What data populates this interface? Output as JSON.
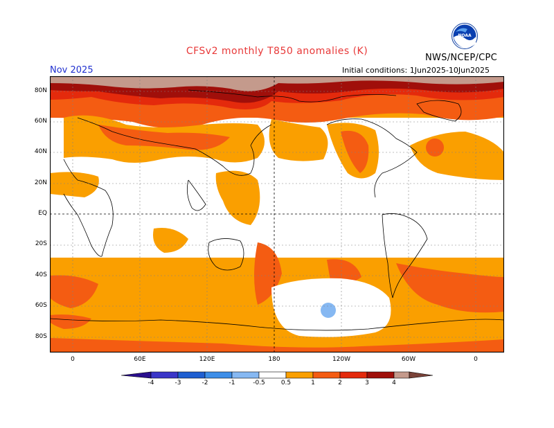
{
  "title": "CFSv2 monthly T850 anomalies (K)",
  "organization": "NWS/NCEP/CPC",
  "logo_label": "NOAA",
  "valid_month": "Nov 2025",
  "initial_conditions": "Initial conditions: 1Jun2025-10Jun2025",
  "latitude_labels": [
    "80N",
    "60N",
    "40N",
    "20N",
    "EQ",
    "20S",
    "40S",
    "60S",
    "80S"
  ],
  "longitude_labels": [
    "0",
    "60E",
    "120E",
    "180",
    "120W",
    "60W",
    "0"
  ],
  "colorbar": {
    "labels": [
      "-4",
      "-3",
      "-2",
      "-1",
      "-0.5",
      "0.5",
      "1",
      "2",
      "3",
      "4"
    ],
    "colors": {
      "lt_neg4": "#2a0f8e",
      "neg4_neg3": "#3a35c8",
      "neg3_neg2": "#1f5fd1",
      "neg2_neg1": "#3d8ee8",
      "neg1_neg05": "#86b8f2",
      "neutral": "#ffffff",
      "p05_1": "#fa9f00",
      "p1_2": "#f45c12",
      "p2_3": "#e42a0c",
      "p3_4": "#a00f0a",
      "gt4_a": "#c49a8c",
      "gt4_b": "#7a4238"
    }
  }
}
